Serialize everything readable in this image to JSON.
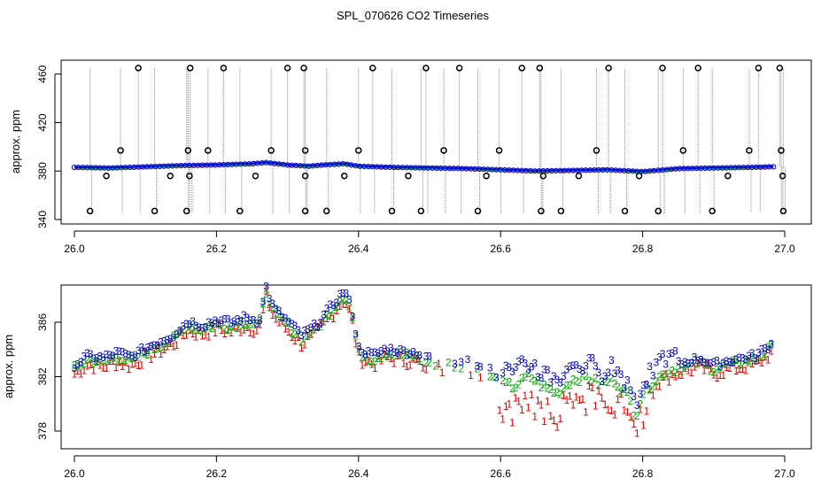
{
  "title": "SPL_070626  CO2 Timeseries",
  "colors": {
    "series1": "#dd0000",
    "series2": "#00aa00",
    "series3": "#0000cc",
    "cyan": "#00cccc",
    "outlier": "#000000",
    "gray": "#888888"
  },
  "chart_data": [
    {
      "type": "line",
      "panel": "top",
      "ylabel": "approx. ppm",
      "xlim": [
        26.0,
        27.0
      ],
      "ylim": [
        340,
        470
      ],
      "xticks": [
        "26.0",
        "26.2",
        "26.4",
        "26.6",
        "26.8",
        "27.0"
      ],
      "yticks": [
        "340",
        "380",
        "420",
        "460"
      ],
      "baseline": {
        "x": [
          26.0,
          26.05,
          26.1,
          26.15,
          26.2,
          26.25,
          26.27,
          26.3,
          26.33,
          26.35,
          26.38,
          26.4,
          26.45,
          26.5,
          26.55,
          26.6,
          26.65,
          26.7,
          26.75,
          26.8,
          26.85,
          26.9,
          26.95,
          26.98
        ],
        "y": [
          383,
          382.5,
          383.5,
          384.5,
          385,
          386,
          387,
          385,
          384,
          385,
          386,
          384,
          383,
          382.5,
          382,
          381,
          380,
          380.5,
          381,
          379.5,
          382,
          382.5,
          383,
          383.5
        ]
      },
      "outliers_high": {
        "x": [
          26.09,
          26.163,
          26.21,
          26.3,
          26.323,
          26.42,
          26.495,
          26.542,
          26.63,
          26.655,
          26.752,
          26.828,
          26.878,
          26.963,
          26.993
        ],
        "y": 465
      },
      "outliers_mid": {
        "x": [
          26.065,
          26.16,
          26.188,
          26.277,
          26.325,
          26.4,
          26.52,
          26.598,
          26.735,
          26.857,
          26.95,
          26.995
        ],
        "y": 397
      },
      "outliers_low": {
        "x": [
          26.022,
          26.113,
          26.158,
          26.233,
          26.325,
          26.355,
          26.447,
          26.488,
          26.568,
          26.657,
          26.685,
          26.775,
          26.822,
          26.898,
          26.998
        ],
        "y": 347
      },
      "outliers_near": {
        "x": [
          26.045,
          26.135,
          26.162,
          26.255,
          26.325,
          26.38,
          26.47,
          26.58,
          26.66,
          26.71,
          26.795,
          26.92,
          26.997
        ],
        "y": 376
      }
    },
    {
      "type": "scatter",
      "panel": "bottom",
      "ylabel": "approx. ppm",
      "xlim": [
        26.0,
        27.0
      ],
      "ylim": [
        376.5,
        388.8
      ],
      "xticks": [
        "26.0",
        "26.2",
        "26.4",
        "26.6",
        "26.8",
        "27.0"
      ],
      "yticks": [
        "378",
        "382",
        "386"
      ],
      "markers": [
        "1",
        "2",
        "3"
      ],
      "series": [
        {
          "name": "1",
          "offset": 0.0
        },
        {
          "name": "2",
          "offset": 0.0
        },
        {
          "name": "3",
          "offset": 0.0
        }
      ],
      "x": [
        26.0,
        26.02,
        26.04,
        26.06,
        26.08,
        26.1,
        26.12,
        26.14,
        26.16,
        26.18,
        26.2,
        26.22,
        26.24,
        26.26,
        26.27,
        26.28,
        26.3,
        26.32,
        26.34,
        26.36,
        26.38,
        26.39,
        26.4,
        26.42,
        26.44,
        26.46,
        26.48,
        26.5,
        26.52,
        26.54,
        26.56,
        26.58,
        26.6,
        26.62,
        26.64,
        26.66,
        26.68,
        26.7,
        26.72,
        26.74,
        26.76,
        26.78,
        26.79,
        26.8,
        26.82,
        26.84,
        26.86,
        26.88,
        26.9,
        26.92,
        26.94,
        26.96,
        26.98
      ],
      "y": [
        382.3,
        383,
        382.8,
        383.2,
        382.9,
        383.5,
        384,
        384.5,
        385.5,
        385.2,
        385.6,
        385.4,
        385.8,
        385.5,
        388,
        386.5,
        385.5,
        384.5,
        385.2,
        386.5,
        387.8,
        386.5,
        383.5,
        383,
        383.5,
        383.3,
        383.2,
        382.8,
        382.7,
        382.6,
        382.5,
        382.3,
        381.2,
        381,
        381.8,
        381,
        380.5,
        381.5,
        381.7,
        381.2,
        381.5,
        380.3,
        378.8,
        380.5,
        381.6,
        382.2,
        382.5,
        382.8,
        382.3,
        382.6,
        382.8,
        383,
        383.8
      ]
    }
  ]
}
